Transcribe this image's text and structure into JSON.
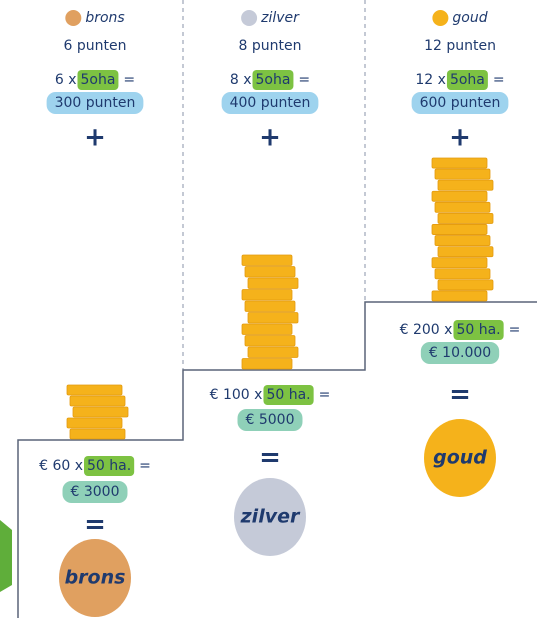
{
  "columns": [
    {
      "medal": "brons",
      "color": "#e0a060",
      "points": "6 punten",
      "multiplier": "6 x",
      "area": "5oha",
      "eq": "=",
      "total_points": "300 punten",
      "plus": "+",
      "money_multiplier": "€ 60 x",
      "money_area": "50 ha.",
      "money_eq": "=",
      "money_total": "€ 3000",
      "result_eq": "=",
      "result": "brons"
    },
    {
      "medal": "zilver",
      "color": "#c5cad8",
      "points": "8 punten",
      "multiplier": "8 x",
      "area": "5oha",
      "eq": "=",
      "total_points": "400 punten",
      "plus": "+",
      "money_multiplier": "€ 100 x",
      "money_area": "50 ha.",
      "money_eq": "=",
      "money_total": "€ 5000",
      "result_eq": "=",
      "result": "zilver"
    },
    {
      "medal": "goud",
      "color": "#f5b21b",
      "points": "12 punten",
      "multiplier": "12 x",
      "area": "5oha",
      "eq": "=",
      "total_points": "600 punten",
      "plus": "+",
      "money_multiplier": "€ 200 x",
      "money_area": "50 ha.",
      "money_eq": "=",
      "money_total": "€ 10.000",
      "result_eq": "=",
      "result": "goud"
    }
  ]
}
